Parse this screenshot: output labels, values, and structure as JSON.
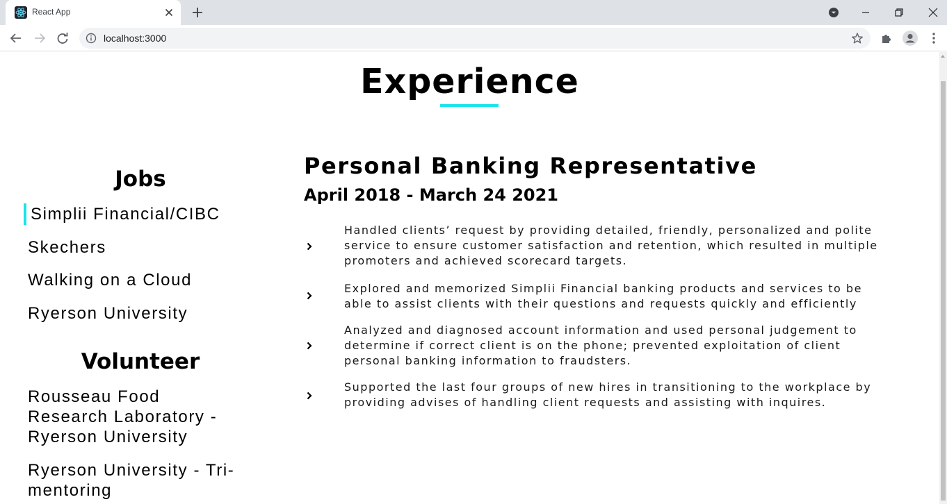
{
  "browser": {
    "tab_title": "React App",
    "url": "localhost:3000"
  },
  "page": {
    "heading": "Experience",
    "accent_color": "#1ce2ec"
  },
  "sidebar": {
    "jobs_heading": "Jobs",
    "jobs": [
      {
        "label": "Simplii Financial/CIBC",
        "selected": true
      },
      {
        "label": "Skechers",
        "selected": false
      },
      {
        "label": "Walking on a Cloud",
        "selected": false
      },
      {
        "label": "Ryerson University",
        "selected": false
      }
    ],
    "volunteer_heading": "Volunteer",
    "volunteer": [
      {
        "lines": [
          "Rousseau Food",
          "Research Laboratory -",
          "Ryerson University"
        ]
      },
      {
        "lines": [
          "Ryerson University - Tri-",
          "mentoring"
        ]
      }
    ]
  },
  "detail": {
    "title": "Personal Banking Representative",
    "dates": "April 2018 - March 24 2021",
    "bullets": [
      {
        "lines": [
          "Handled clients’ request by providing detailed, friendly, personalized and polite",
          "service to ensure customer satisfaction and retention, which resulted in multiple",
          "promoters and achieved scorecard targets."
        ]
      },
      {
        "lines": [
          "Explored and memorized Simplii Financial banking products and services to be",
          "able to assist clients with their questions and requests quickly and efficiently"
        ]
      },
      {
        "lines": [
          "Analyzed and diagnosed account information and used personal judgement to",
          "determine if correct client is on the phone; prevented exploitation of client",
          "personal banking information to fraudsters."
        ]
      },
      {
        "lines": [
          "Supported the last four groups of new hires in transitioning to the workplace by",
          "providing advises of handling client requests and assisting with inquires."
        ]
      }
    ],
    "bullet_icon": "chevron-right-icon"
  }
}
